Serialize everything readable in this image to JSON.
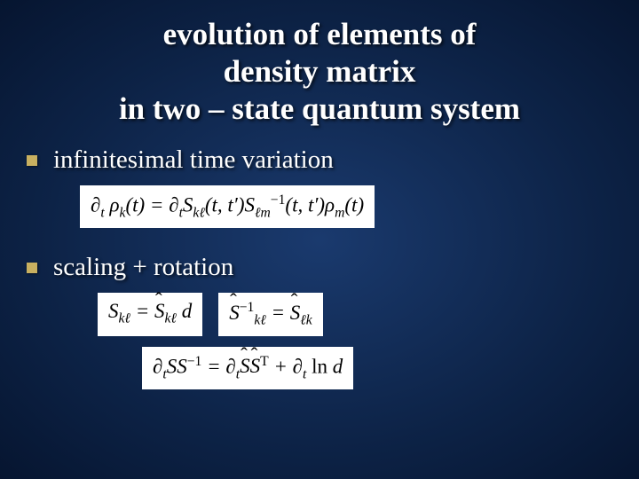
{
  "title": {
    "line1": "evolution of elements of",
    "line2": "density matrix",
    "line3": "in two – state quantum system"
  },
  "bullets": [
    {
      "text": "infinitesimal time variation"
    },
    {
      "text": "scaling + rotation"
    }
  ],
  "styling": {
    "slide_width": 720,
    "slide_height": 540,
    "background_gradient": [
      "#1a3a6e",
      "#0d2347",
      "#061530"
    ],
    "title_color": "#ffffff",
    "title_fontsize": 35,
    "title_fontweight": "bold",
    "bullet_square_color": "#c8b060",
    "bullet_square_size": 12,
    "bullet_text_color": "#ffffff",
    "bullet_text_fontsize": 29,
    "formula_background": "#ffffff",
    "formula_text_color": "#000000",
    "formula_fontsize": 23,
    "text_shadow": "2px 2px 3px rgba(0,0,0,0.7)",
    "font_family": "Georgia, Times New Roman, serif"
  },
  "formulas": {
    "f1": {
      "latex": "\\partial_t \\rho_k(t) = \\partial_t S_{k\\ell}(t,t') S^{-1}_{\\ell m}(t,t') \\rho_m(t)",
      "position": "after_bullet_1"
    },
    "f2a": {
      "latex": "S_{k\\ell} = \\hat{S}_{k\\ell} d",
      "position": "after_bullet_2_left"
    },
    "f2b": {
      "latex": "\\hat{S}^{-1}_{k\\ell} = \\hat{S}_{\\ell k}",
      "position": "after_bullet_2_right"
    },
    "f3": {
      "latex": "\\partial_t S S^{-1} = \\partial_t \\hat{S} \\hat{S}^T + \\partial_t \\ln d",
      "position": "after_bullet_2_bottom"
    }
  }
}
